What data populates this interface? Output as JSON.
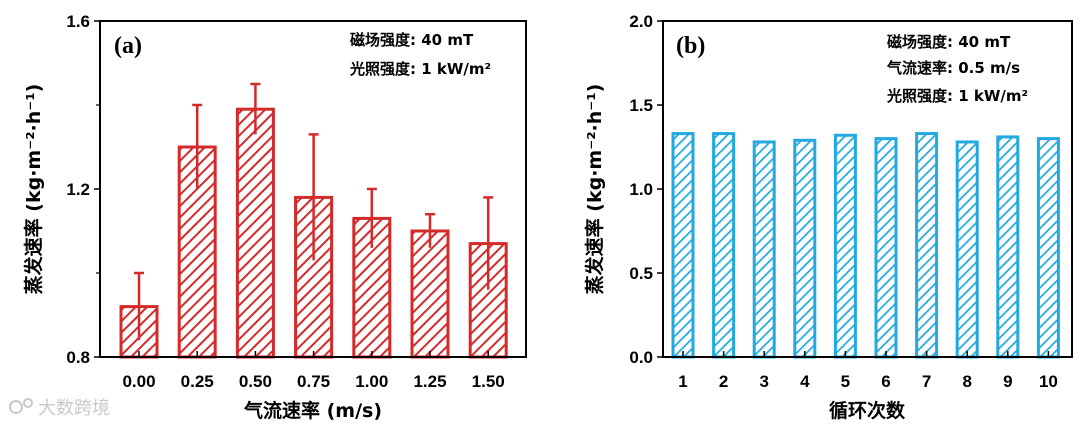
{
  "chart_data": [
    {
      "type": "bar",
      "panel_label": "(a)",
      "title": "",
      "categories": [
        "0.00",
        "0.25",
        "0.50",
        "0.75",
        "1.00",
        "1.25",
        "1.50"
      ],
      "values": [
        0.92,
        1.3,
        1.39,
        1.18,
        1.13,
        1.1,
        1.07
      ],
      "errors": [
        0.08,
        0.1,
        0.06,
        0.15,
        0.07,
        0.04,
        0.11
      ],
      "xlabel": "气流速率 (m/s)",
      "ylabel": "蒸发速率 (kg·m⁻²·h⁻¹)",
      "ylim": [
        0.8,
        1.6
      ],
      "yticks": [
        "0.8",
        "1.2",
        "1.6"
      ],
      "color": "#d42a2a",
      "annotations": [
        "磁场强度: 40 mT",
        "光照强度: 1 kW/m²"
      ]
    },
    {
      "type": "bar",
      "panel_label": "(b)",
      "title": "",
      "categories": [
        "1",
        "2",
        "3",
        "4",
        "5",
        "6",
        "7",
        "8",
        "9",
        "10"
      ],
      "values": [
        1.33,
        1.33,
        1.28,
        1.29,
        1.32,
        1.3,
        1.33,
        1.28,
        1.31,
        1.3
      ],
      "xlabel": "循环次数",
      "ylabel": "蒸发速率 (kg·m⁻²·h⁻¹)",
      "ylim": [
        0.0,
        2.0
      ],
      "yticks": [
        "0.0",
        "0.5",
        "1.0",
        "1.5",
        "2.0"
      ],
      "color": "#23a9e1",
      "annotations": [
        "磁场强度: 40 mT",
        "气流速率: 0.5 m/s",
        "光照强度: 1 kW/m²"
      ]
    }
  ],
  "watermark": "大数跨境"
}
